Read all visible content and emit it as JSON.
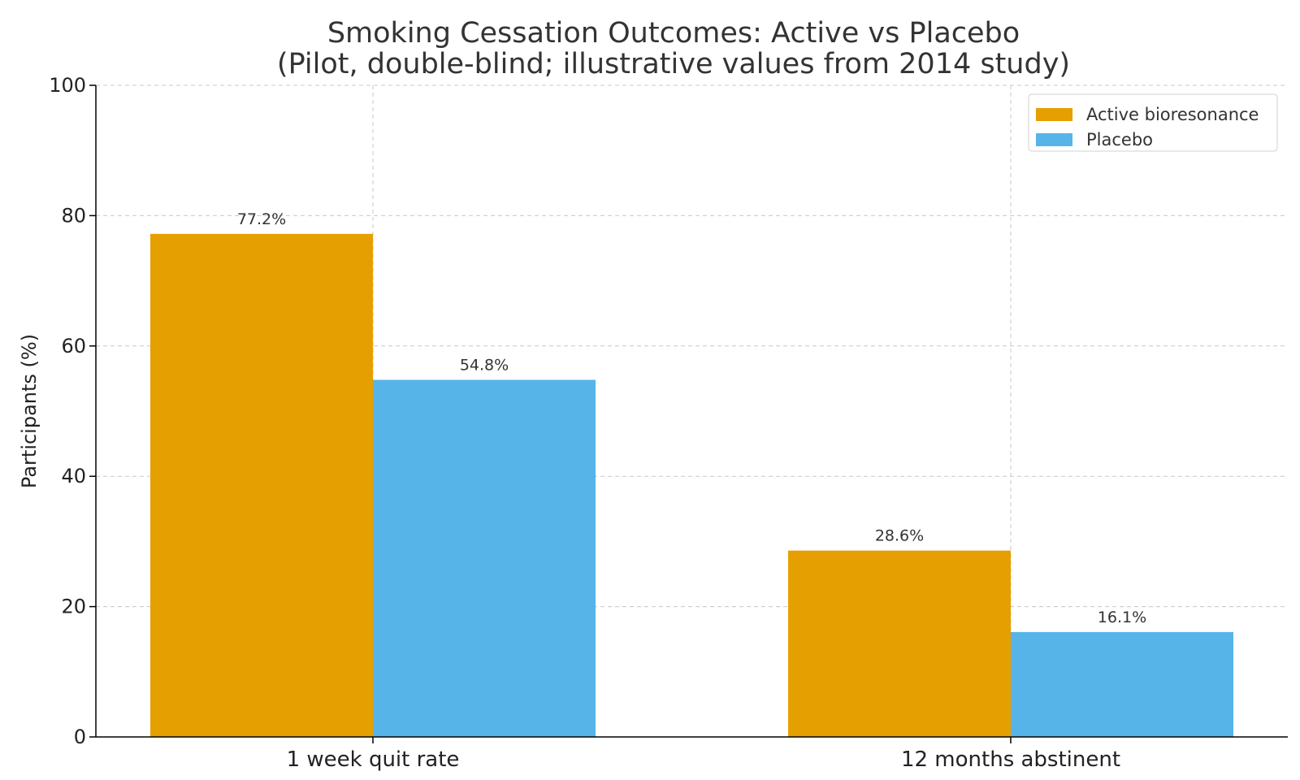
{
  "chart_data": {
    "type": "bar",
    "title_line1": "Smoking Cessation Outcomes: Active vs Placebo",
    "title_line2": "(Pilot, double-blind; illustrative values from 2014 study)",
    "xlabel": "",
    "ylabel": "Participants (%)",
    "ylim": [
      0,
      100
    ],
    "yticks": [
      0,
      20,
      40,
      60,
      80,
      100
    ],
    "categories": [
      "1 week quit rate",
      "12 months abstinent"
    ],
    "series": [
      {
        "name": "Active bioresonance",
        "color": "#E69F00",
        "values": [
          77.2,
          28.6
        ],
        "labels": [
          "77.2%",
          "28.6%"
        ]
      },
      {
        "name": "Placebo",
        "color": "#56B4E9",
        "values": [
          54.8,
          16.1
        ],
        "labels": [
          "54.8%",
          "16.1%"
        ]
      }
    ],
    "grid": true,
    "legend_position": "top-right"
  }
}
